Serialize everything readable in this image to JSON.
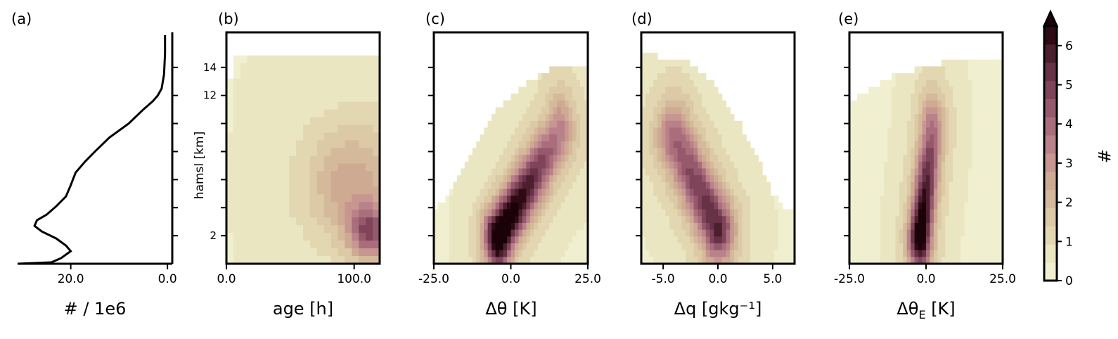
{
  "chart_data": [
    {
      "panel": "(a)",
      "type": "line",
      "xlabel": "# / 1e6",
      "x_ticks": [
        "20.0",
        "0.0"
      ],
      "xlim": [
        31,
        -1
      ],
      "ylim": [
        0,
        16.5
      ],
      "series": [
        {
          "x": [
            31,
            24,
            22,
            20,
            21,
            23,
            26,
            27.5,
            27,
            25,
            23,
            21,
            20,
            19,
            17,
            15,
            12,
            8,
            5,
            3,
            2,
            1.2,
            0.7,
            0.5,
            0.5
          ],
          "y": [
            0,
            0.1,
            0.4,
            0.9,
            1.3,
            1.8,
            2.3,
            2.7,
            3.1,
            3.5,
            4.1,
            4.8,
            5.6,
            6.5,
            7.3,
            8.0,
            9.0,
            10.0,
            11.0,
            11.6,
            12.0,
            12.5,
            13.5,
            15.0,
            16.3
          ]
        }
      ]
    },
    {
      "panel": "(b)",
      "type": "heatmap",
      "xlabel": "age [h]",
      "ylabel": "hamsl [km]",
      "x_ticks": [
        "0.0",
        "100.0"
      ],
      "y_ticks": [
        "2",
        "12",
        "14"
      ],
      "xlim": [
        0,
        120
      ],
      "ylim": [
        0,
        16.5
      ],
      "nx": 22,
      "ny": 30,
      "peaks": [
        {
          "cx": 112,
          "cy": 2.2,
          "sx": 16,
          "sy": 1.8,
          "amp": 3.5
        },
        {
          "cx": 95,
          "cy": 5.5,
          "sx": 30,
          "sy": 4.0,
          "amp": 1.5
        }
      ],
      "base": 0.45,
      "envelope": [
        [
          0,
          12.0
        ],
        [
          6,
          14.6
        ],
        [
          12,
          15.0
        ],
        [
          24,
          15.0
        ],
        [
          120,
          15.0
        ]
      ]
    },
    {
      "panel": "(c)",
      "type": "heatmap",
      "xlabel": "Δθ [K]",
      "x_ticks": [
        "-25.0",
        "0.0",
        "25.0"
      ],
      "xlim": [
        -25,
        25
      ],
      "ylim": [
        0,
        16.5
      ],
      "nx": 40,
      "ny": 34,
      "ridge": {
        "x0": -4.0,
        "y0": 2.0,
        "x1": 16.0,
        "y1": 9.5,
        "width": 3.0,
        "amp_start": 6.5,
        "amp_end": 2.0
      },
      "base": 0.35,
      "envelope": [
        [
          -25,
          3.8
        ],
        [
          -20,
          5.0
        ],
        [
          -15,
          6.8
        ],
        [
          -10,
          9.2
        ],
        [
          -5,
          11.0
        ],
        [
          0,
          12.0
        ],
        [
          5,
          12.8
        ],
        [
          10,
          13.6
        ],
        [
          15,
          14.0
        ],
        [
          20,
          14.3
        ],
        [
          25,
          14.3
        ]
      ]
    },
    {
      "panel": "(d)",
      "type": "heatmap",
      "xlabel": "Δq [gkg⁻¹]",
      "x_ticks": [
        "-5.0",
        "0.0",
        "5.0"
      ],
      "xlim": [
        -7,
        7
      ],
      "ylim": [
        0,
        16.5
      ],
      "nx": 38,
      "ny": 34,
      "ridge": {
        "x0": 0.0,
        "y0": 2.5,
        "x1": -4.0,
        "y1": 9.0,
        "width": 1.0,
        "amp_start": 4.2,
        "amp_end": 2.6
      },
      "base": 0.35,
      "envelope_right": [
        [
          -7,
          15.0
        ],
        [
          -3,
          14.5
        ],
        [
          0,
          12.5
        ],
        [
          2,
          10.0
        ],
        [
          4,
          7.0
        ],
        [
          5,
          5.0
        ],
        [
          6,
          4.0
        ],
        [
          7,
          4.0
        ]
      ]
    },
    {
      "panel": "(e)",
      "type": "heatmap",
      "xlabel": "Δθ_E [K]",
      "xlabel_parts": {
        "delta": "Δθ",
        "sub": "E",
        "unit": " [K]"
      },
      "x_ticks": [
        "-25.0",
        "0.0",
        "25.0"
      ],
      "xlim": [
        -25,
        25
      ],
      "ylim": [
        0,
        16.5
      ],
      "nx": 40,
      "ny": 34,
      "ridge": {
        "x0": -2.0,
        "y0": 2.0,
        "x1": 2.0,
        "y1": 9.5,
        "width": 2.5,
        "amp_start": 6.2,
        "amp_end": 2.5
      },
      "base": 0.35,
      "envelope": [
        [
          -25,
          11.5
        ],
        [
          -20,
          12.2
        ],
        [
          -15,
          12.8
        ],
        [
          -10,
          13.5
        ],
        [
          0,
          14.0
        ],
        [
          10,
          14.6
        ],
        [
          25,
          14.6
        ]
      ]
    }
  ],
  "colorbar": {
    "label": "#",
    "ticks": [
      "0",
      "1",
      "2",
      "3",
      "4",
      "5",
      "6"
    ],
    "levels": 14,
    "vmax": 6.5,
    "colors": [
      "#f0efcf",
      "#ebe6c2",
      "#e3d7b2",
      "#dcc9a6",
      "#d5b99b",
      "#cfaa93",
      "#c79690",
      "#b9818a",
      "#a96d7c",
      "#96586c",
      "#7f4459",
      "#673245",
      "#4c1f2e",
      "#2e0a14"
    ],
    "extend_color": "#1a0208"
  }
}
